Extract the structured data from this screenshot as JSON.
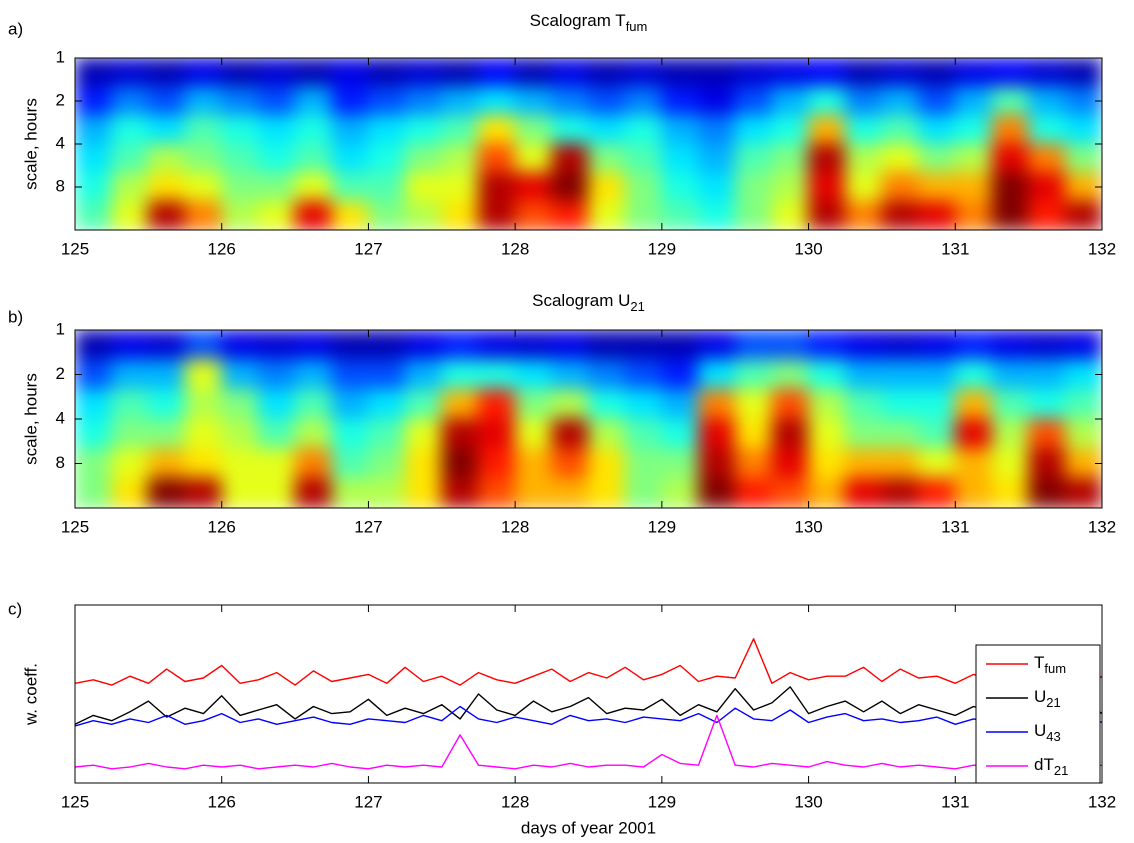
{
  "chart_data": [
    {
      "type": "heatmap",
      "panel_label": "a)",
      "title": "Scalogram T",
      "title_sub": "fum",
      "ylabel": "scale, hours",
      "colormap": "jet",
      "log_y": true,
      "y_reversed": true,
      "xlim": [
        125,
        132
      ],
      "ylim": [
        1,
        16
      ],
      "xticks": [
        125,
        126,
        127,
        128,
        129,
        130,
        131,
        132
      ],
      "yticks": [
        1,
        2,
        4,
        8
      ],
      "values": [
        [
          0.05,
          0.08,
          0.05,
          0.1,
          0.05,
          0.08,
          0.05,
          0.1,
          0.05,
          0.08,
          0.05,
          0.12,
          0.05,
          0.1,
          0.05,
          0.08,
          0.05,
          0.05,
          0.08,
          0.1,
          0.12,
          0.05,
          0.08,
          0.05,
          0.1,
          0.12,
          0.08,
          0.05
        ],
        [
          0.15,
          0.25,
          0.2,
          0.3,
          0.25,
          0.2,
          0.3,
          0.15,
          0.2,
          0.25,
          0.3,
          0.35,
          0.3,
          0.25,
          0.2,
          0.25,
          0.15,
          0.1,
          0.2,
          0.3,
          0.4,
          0.25,
          0.3,
          0.2,
          0.3,
          0.45,
          0.3,
          0.25
        ],
        [
          0.3,
          0.4,
          0.35,
          0.45,
          0.4,
          0.35,
          0.4,
          0.3,
          0.35,
          0.4,
          0.45,
          0.65,
          0.5,
          0.4,
          0.35,
          0.4,
          0.3,
          0.25,
          0.35,
          0.4,
          0.7,
          0.4,
          0.45,
          0.35,
          0.4,
          0.75,
          0.4,
          0.35
        ],
        [
          0.35,
          0.45,
          0.55,
          0.5,
          0.45,
          0.4,
          0.45,
          0.35,
          0.4,
          0.5,
          0.55,
          0.8,
          0.6,
          0.95,
          0.5,
          0.45,
          0.35,
          0.3,
          0.45,
          0.5,
          0.95,
          0.55,
          0.6,
          0.5,
          0.55,
          0.9,
          0.75,
          0.5
        ],
        [
          0.4,
          0.55,
          0.65,
          0.6,
          0.5,
          0.5,
          0.6,
          0.45,
          0.45,
          0.6,
          0.6,
          0.95,
          0.9,
          1.0,
          0.65,
          0.5,
          0.4,
          0.35,
          0.5,
          0.55,
          0.9,
          0.6,
          0.75,
          0.7,
          0.7,
          1.0,
          0.9,
          0.7
        ],
        [
          0.45,
          0.6,
          0.95,
          0.75,
          0.55,
          0.6,
          0.9,
          0.65,
          0.5,
          0.55,
          0.65,
          0.95,
          0.8,
          0.85,
          0.6,
          0.5,
          0.45,
          0.4,
          0.5,
          0.6,
          0.95,
          0.75,
          0.95,
          0.9,
          0.75,
          1.0,
          0.85,
          0.95
        ]
      ]
    },
    {
      "type": "heatmap",
      "panel_label": "b)",
      "title": "Scalogram U",
      "title_sub": "21",
      "ylabel": "scale, hours",
      "colormap": "jet",
      "log_y": true,
      "y_reversed": true,
      "xlim": [
        125,
        132
      ],
      "ylim": [
        1,
        16
      ],
      "xticks": [
        125,
        126,
        127,
        128,
        129,
        130,
        131,
        132
      ],
      "yticks": [
        1,
        2,
        4,
        8
      ],
      "values": [
        [
          0.05,
          0.1,
          0.08,
          0.2,
          0.1,
          0.08,
          0.1,
          0.05,
          0.05,
          0.1,
          0.15,
          0.1,
          0.08,
          0.1,
          0.05,
          0.05,
          0.05,
          0.1,
          0.2,
          0.2,
          0.15,
          0.1,
          0.08,
          0.1,
          0.15,
          0.1,
          0.08,
          0.1
        ],
        [
          0.2,
          0.3,
          0.3,
          0.6,
          0.3,
          0.25,
          0.3,
          0.2,
          0.2,
          0.3,
          0.4,
          0.4,
          0.35,
          0.3,
          0.25,
          0.2,
          0.15,
          0.35,
          0.45,
          0.5,
          0.4,
          0.3,
          0.3,
          0.3,
          0.4,
          0.3,
          0.3,
          0.35
        ],
        [
          0.35,
          0.45,
          0.4,
          0.55,
          0.5,
          0.35,
          0.45,
          0.3,
          0.35,
          0.45,
          0.7,
          0.85,
          0.5,
          0.55,
          0.4,
          0.35,
          0.3,
          0.75,
          0.6,
          0.8,
          0.55,
          0.45,
          0.4,
          0.4,
          0.7,
          0.45,
          0.4,
          0.45
        ],
        [
          0.4,
          0.5,
          0.5,
          0.6,
          0.55,
          0.45,
          0.55,
          0.4,
          0.45,
          0.6,
          0.95,
          0.9,
          0.6,
          0.95,
          0.55,
          0.45,
          0.4,
          0.9,
          0.65,
          0.95,
          0.6,
          0.5,
          0.5,
          0.45,
          0.9,
          0.55,
          0.8,
          0.55
        ],
        [
          0.5,
          0.6,
          0.7,
          0.65,
          0.6,
          0.6,
          0.75,
          0.45,
          0.5,
          0.65,
          1.0,
          0.85,
          0.7,
          0.8,
          0.65,
          0.5,
          0.5,
          0.95,
          0.75,
          0.9,
          0.65,
          0.7,
          0.7,
          0.6,
          0.7,
          0.6,
          0.95,
          0.7
        ],
        [
          0.5,
          0.65,
          1.0,
          0.95,
          0.6,
          0.6,
          0.95,
          0.55,
          0.55,
          0.65,
          0.95,
          0.8,
          0.7,
          0.7,
          0.65,
          0.5,
          0.55,
          1.0,
          0.85,
          0.8,
          0.7,
          0.9,
          0.95,
          0.85,
          0.7,
          0.65,
          1.0,
          0.95
        ]
      ]
    },
    {
      "type": "line",
      "panel_label": "c)",
      "ylabel": "w. coeff.",
      "xlabel": "days of year 2001",
      "legend": "upper right",
      "xlim": [
        125,
        132
      ],
      "ylim": [
        0,
        10
      ],
      "xticks": [
        125,
        126,
        127,
        128,
        129,
        130,
        131,
        132
      ],
      "x": [
        125,
        125.125,
        125.25,
        125.375,
        125.5,
        125.625,
        125.75,
        125.875,
        126,
        126.125,
        126.25,
        126.375,
        126.5,
        126.625,
        126.75,
        126.875,
        127,
        127.125,
        127.25,
        127.375,
        127.5,
        127.625,
        127.75,
        127.875,
        128,
        128.125,
        128.25,
        128.375,
        128.5,
        128.625,
        128.75,
        128.875,
        129,
        129.125,
        129.25,
        129.375,
        129.5,
        129.625,
        129.75,
        129.875,
        130,
        130.125,
        130.25,
        130.375,
        130.5,
        130.625,
        130.75,
        130.875,
        131,
        131.125,
        131.25,
        131.375,
        131.5,
        131.625,
        131.75,
        131.875,
        132
      ],
      "series": [
        {
          "name": "T",
          "name_sub": "fum",
          "color": "#ff0000",
          "values": [
            5.6,
            5.8,
            5.5,
            6.0,
            5.6,
            6.4,
            5.7,
            5.9,
            6.6,
            5.6,
            5.8,
            6.2,
            5.5,
            6.3,
            5.7,
            5.9,
            6.1,
            5.6,
            6.5,
            5.7,
            6.0,
            5.5,
            6.2,
            5.8,
            5.6,
            6.0,
            6.4,
            5.7,
            6.2,
            5.9,
            6.5,
            5.8,
            6.1,
            6.6,
            5.7,
            6.0,
            5.9,
            8.1,
            5.6,
            6.2,
            5.8,
            6.0,
            6.0,
            6.5,
            5.7,
            6.4,
            5.9,
            6.0,
            5.6,
            6.1,
            5.8,
            5.9,
            6.2,
            5.5,
            5.8,
            5.2,
            6.0
          ]
        },
        {
          "name": "U",
          "name_sub": "21",
          "color": "#000000",
          "values": [
            3.3,
            3.8,
            3.5,
            4.0,
            4.6,
            3.7,
            4.2,
            3.9,
            4.9,
            3.8,
            4.1,
            4.4,
            3.6,
            4.3,
            3.9,
            4.0,
            4.7,
            3.8,
            4.2,
            3.9,
            4.4,
            3.6,
            5.0,
            4.1,
            3.8,
            4.6,
            4.0,
            4.3,
            4.8,
            3.9,
            4.2,
            4.1,
            4.7,
            3.8,
            4.4,
            4.0,
            5.3,
            4.1,
            4.5,
            5.4,
            3.9,
            4.3,
            4.6,
            4.0,
            4.6,
            3.9,
            4.4,
            4.1,
            3.8,
            4.3,
            4.0,
            4.2,
            3.9,
            4.1,
            3.5,
            4.7,
            3.9
          ]
        },
        {
          "name": "U",
          "name_sub": "43",
          "color": "#0000ff",
          "values": [
            3.2,
            3.5,
            3.3,
            3.6,
            3.4,
            3.8,
            3.3,
            3.5,
            3.9,
            3.4,
            3.6,
            3.3,
            3.5,
            3.7,
            3.4,
            3.3,
            3.6,
            3.5,
            3.4,
            3.8,
            3.5,
            4.3,
            3.6,
            3.4,
            3.7,
            3.5,
            3.3,
            3.8,
            3.5,
            3.6,
            3.4,
            3.7,
            3.6,
            3.5,
            3.9,
            3.4,
            4.2,
            3.6,
            3.5,
            4.1,
            3.4,
            3.7,
            3.9,
            3.5,
            3.6,
            3.4,
            3.5,
            3.7,
            3.3,
            3.6,
            3.4,
            3.5,
            3.3,
            3.5,
            3.2,
            3.8,
            3.4
          ]
        },
        {
          "name": "dT",
          "name_sub": "21",
          "color": "#ff00ff",
          "values": [
            0.9,
            1.0,
            0.8,
            0.9,
            1.1,
            0.9,
            0.8,
            1.0,
            0.9,
            1.0,
            0.8,
            0.9,
            1.0,
            0.9,
            1.1,
            0.9,
            0.8,
            1.0,
            0.9,
            1.0,
            0.9,
            2.7,
            1.0,
            0.9,
            0.8,
            1.0,
            0.9,
            1.1,
            0.9,
            1.0,
            1.0,
            0.9,
            1.6,
            1.1,
            1.0,
            3.8,
            1.0,
            0.9,
            1.1,
            1.0,
            0.9,
            1.2,
            1.0,
            0.9,
            1.1,
            0.9,
            1.0,
            0.9,
            0.8,
            1.0,
            0.9,
            1.0,
            0.9,
            1.1,
            1.0,
            0.9,
            1.0
          ]
        }
      ]
    }
  ]
}
